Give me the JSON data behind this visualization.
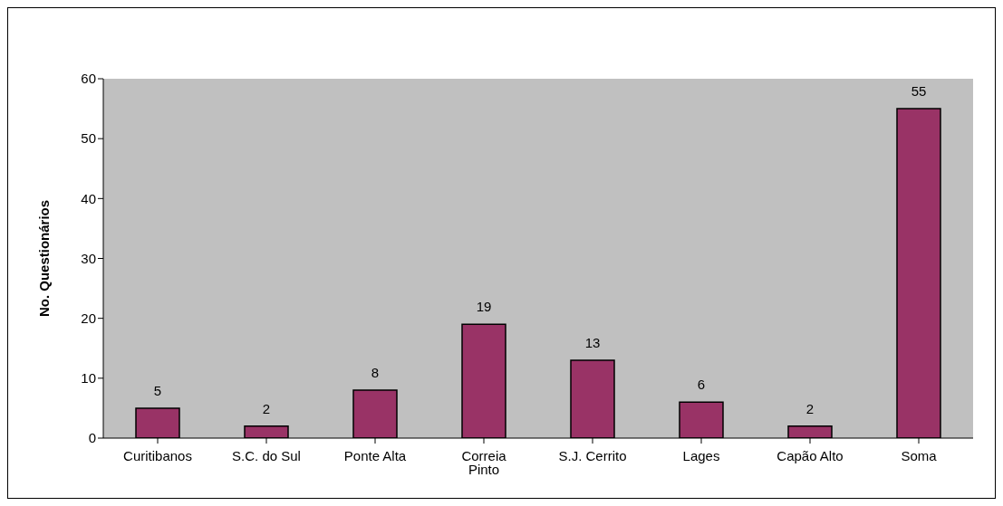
{
  "chart_data": {
    "type": "bar",
    "ylabel": "No. Questionários",
    "categories": [
      "Curitibanos",
      "S.C. do Sul",
      "Ponte Alta",
      "Correia Pinto",
      "S.J. Cerrito",
      "Lages",
      "Capão Alto",
      "Soma"
    ],
    "values": [
      5,
      2,
      8,
      19,
      13,
      6,
      2,
      55
    ],
    "color": "#993366",
    "ylim": [
      0,
      60
    ],
    "yticks": [
      0,
      10,
      20,
      30,
      40,
      50,
      60
    ],
    "data_labels": true
  }
}
